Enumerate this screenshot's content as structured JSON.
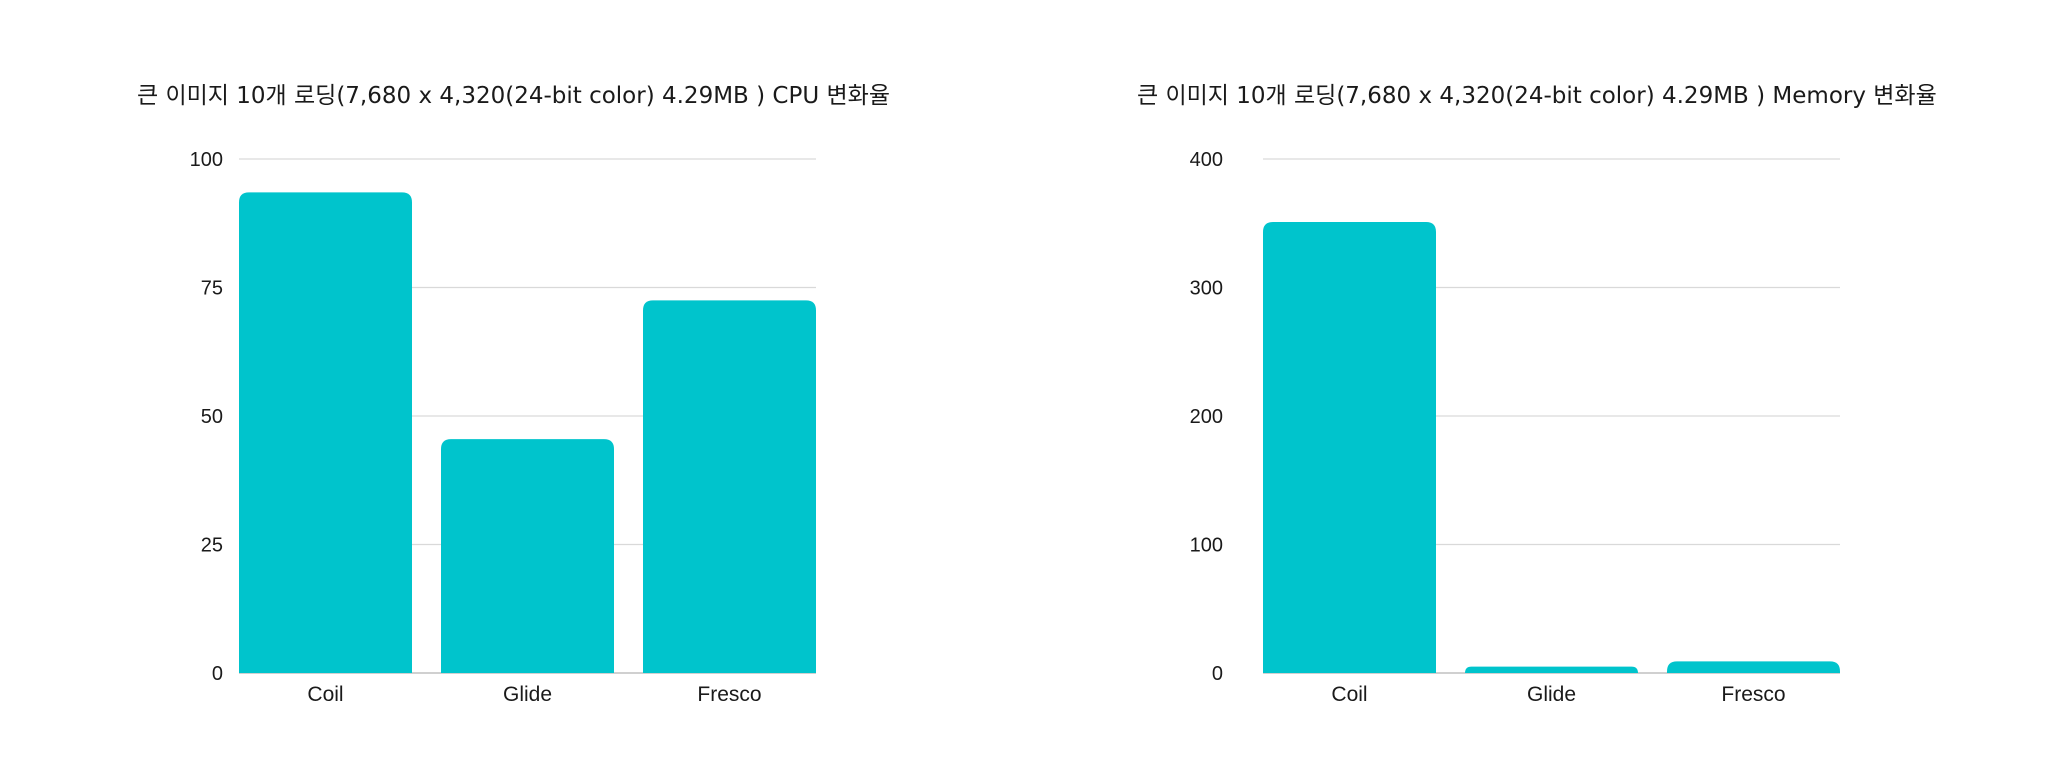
{
  "chart_data": [
    {
      "type": "bar",
      "title": "큰 이미지 10개 로딩(7,680 x 4,320(24-bit color) 4.29MB ) CPU 변화율",
      "categories": [
        "Coil",
        "Glide",
        "Fresco"
      ],
      "values": [
        93.5,
        45.5,
        72.5
      ],
      "ylim": [
        0,
        100
      ],
      "yticks": [
        "0",
        "25",
        "50",
        "75",
        "100"
      ],
      "ytick_values": [
        0,
        25,
        50,
        75,
        100
      ],
      "grid": true,
      "xlabel": "",
      "ylabel": "",
      "color": "#00C4CC"
    },
    {
      "type": "bar",
      "title": "큰 이미지 10개 로딩(7,680 x 4,320(24-bit color) 4.29MB ) Memory 변화율",
      "categories": [
        "Coil",
        "Glide",
        "Fresco"
      ],
      "values": [
        351,
        5,
        9
      ],
      "ylim": [
        0,
        400
      ],
      "yticks": [
        "0",
        "100",
        "200",
        "300",
        "400"
      ],
      "ytick_values": [
        0,
        100,
        200,
        300,
        400
      ],
      "grid": true,
      "xlabel": "",
      "ylabel": "",
      "color": "#00C4CC"
    }
  ]
}
